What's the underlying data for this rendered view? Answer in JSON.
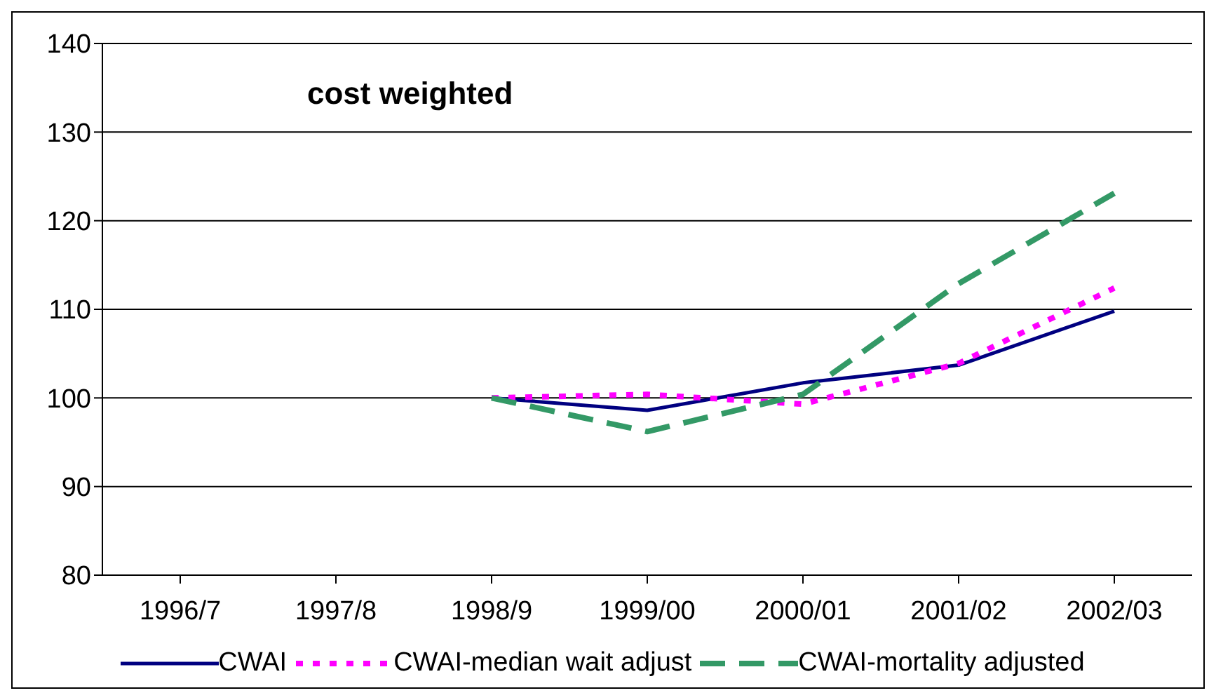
{
  "chart_data": {
    "type": "line",
    "title": "cost weighted",
    "categories": [
      "1996/7",
      "1997/8",
      "1998/9",
      "1999/00",
      "2000/01",
      "2001/02",
      "2002/03"
    ],
    "series": [
      {
        "name": "CWAI",
        "color": "#000080",
        "line_style": "solid",
        "values": [
          null,
          null,
          100,
          98.6,
          101.7,
          103.7,
          109.8
        ]
      },
      {
        "name": "CWAI-median wait adjust",
        "color": "#ff00ff",
        "line_style": "dotted",
        "values": [
          null,
          null,
          100,
          100.4,
          99.3,
          103.9,
          112.4
        ]
      },
      {
        "name": "CWAI-mortality adjusted",
        "color": "#339966",
        "line_style": "dashed",
        "values": [
          null,
          null,
          100,
          96.2,
          100.4,
          112.9,
          123.1
        ]
      }
    ],
    "ylim": [
      80,
      140
    ],
    "yticks": [
      80,
      90,
      100,
      110,
      120,
      130,
      140
    ],
    "grid": "y",
    "legend": "bottom",
    "marker": "none"
  }
}
